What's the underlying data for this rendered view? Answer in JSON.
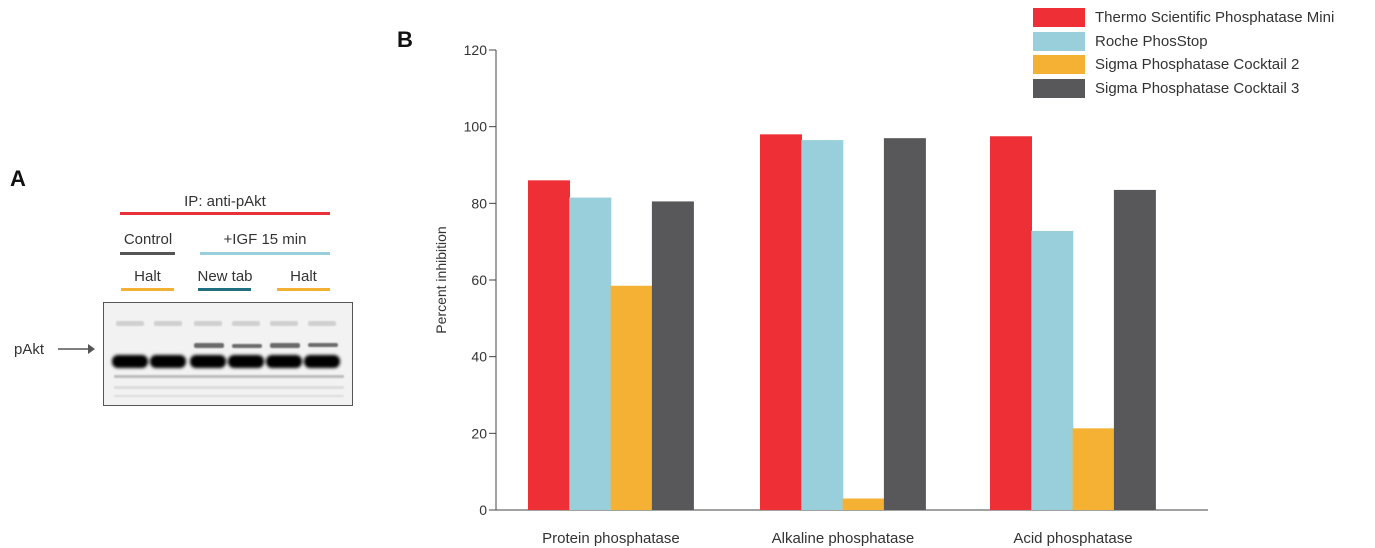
{
  "panels": {
    "a": "A",
    "b": "B"
  },
  "blot": {
    "ip_label": "IP: anti-pAkt",
    "group_control": "Control",
    "group_igf": "+IGF 15 min",
    "lane_halt_1": "Halt",
    "lane_new_tab": "New tab",
    "lane_halt_2": "Halt",
    "band_label": "pAkt",
    "colors": {
      "ip": "#e8323a",
      "control": "#555555",
      "igf": "#99cfdb",
      "halt": "#f3b134",
      "new_tab": "#1f6f80"
    }
  },
  "chart_data": {
    "type": "bar",
    "categories": [
      "Protein phosphatase",
      "Alkaline phosphatase",
      "Acid phosphatase"
    ],
    "series": [
      {
        "name": "Thermo Scientific Phosphatase Mini",
        "color": "#ee3036",
        "values": [
          86,
          98,
          97.5
        ]
      },
      {
        "name": "Roche PhosStop",
        "color": "#99cfdb",
        "values": [
          81.5,
          96.5,
          72.8
        ]
      },
      {
        "name": "Sigma Phosphatase Cocktail 2",
        "color": "#f5b133",
        "values": [
          58.5,
          3,
          21.3
        ]
      },
      {
        "name": "Sigma Phosphatase Cocktail 3",
        "color": "#58585a",
        "values": [
          80.5,
          97,
          83.5
        ]
      }
    ],
    "ylabel": "Percent inhibition",
    "ylim": [
      0,
      120
    ],
    "yticks": [
      0,
      20,
      40,
      60,
      80,
      100,
      120
    ],
    "grid": false,
    "legend_position": "top-right"
  }
}
